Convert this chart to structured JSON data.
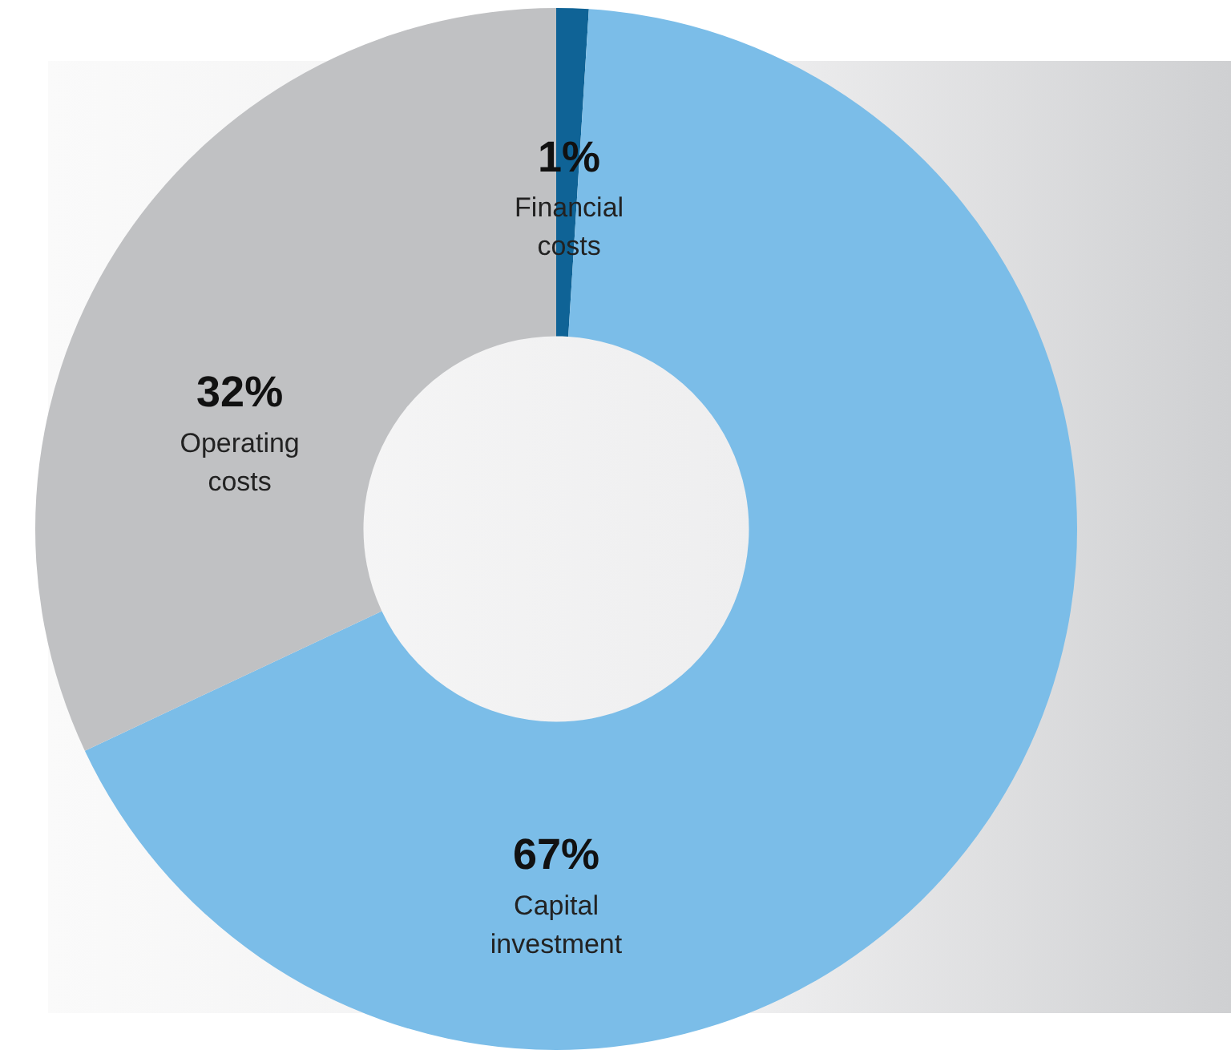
{
  "chart_data": {
    "type": "donut",
    "categories": [
      "Financial costs",
      "Capital investment",
      "Operating costs"
    ],
    "values": [
      1,
      67,
      32
    ],
    "colors": [
      "#0f6396",
      "#7bbde8",
      "#c0c1c3"
    ],
    "value_labels": [
      "1%",
      "67%",
      "32%"
    ],
    "legend": false
  }
}
